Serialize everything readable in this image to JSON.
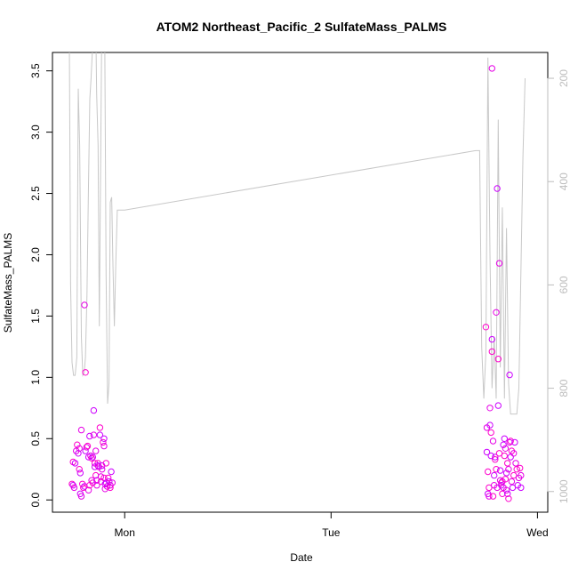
{
  "chart_data": {
    "type": "scatter",
    "title": "ATOM2 Northeast_Pacific_2 SulfateMass_PALMS",
    "xlabel": "Date",
    "ylabel": "SulfateMass_PALMS",
    "x_ticks": [
      "Mon",
      "Tue",
      "Wed"
    ],
    "ylim": [
      0,
      3.65
    ],
    "y_ticks": [
      "0.0",
      "0.5",
      "1.0",
      "1.5",
      "2.0",
      "2.5",
      "3.0",
      "3.5"
    ],
    "y2_ticks": [
      "200",
      "400",
      "600",
      "800",
      "1000"
    ],
    "colors": {
      "points": [
        "#ff00cc",
        "#cc00ff",
        "#e600e6"
      ],
      "pressure_line": "#c8c8c8",
      "right_axis": "#bdbdbd"
    },
    "series": [
      {
        "values_note": "x in days after Monday 00:00, y in SulfateMass_PALMS units",
        "points": [
          [
            -0.255,
            0.13
          ],
          [
            -0.25,
            0.12
          ],
          [
            -0.245,
            0.1
          ],
          [
            -0.25,
            0.31
          ],
          [
            -0.24,
            0.3
          ],
          [
            -0.235,
            0.4
          ],
          [
            -0.23,
            0.45
          ],
          [
            -0.225,
            0.38
          ],
          [
            -0.22,
            0.42
          ],
          [
            -0.22,
            0.25
          ],
          [
            -0.215,
            0.22
          ],
          [
            -0.21,
            0.57
          ],
          [
            -0.205,
            0.13
          ],
          [
            -0.215,
            0.05
          ],
          [
            -0.21,
            0.03
          ],
          [
            -0.2,
            0.1
          ],
          [
            -0.195,
            0.11
          ],
          [
            -0.195,
            1.59
          ],
          [
            -0.19,
            1.04
          ],
          [
            -0.19,
            0.4
          ],
          [
            -0.185,
            0.43
          ],
          [
            -0.18,
            0.44
          ],
          [
            -0.175,
            0.35
          ],
          [
            -0.175,
            0.08
          ],
          [
            -0.17,
            0.12
          ],
          [
            -0.17,
            0.52
          ],
          [
            -0.165,
            0.36
          ],
          [
            -0.16,
            0.34
          ],
          [
            -0.155,
            0.35
          ],
          [
            -0.16,
            0.16
          ],
          [
            -0.155,
            0.14
          ],
          [
            -0.15,
            0.73
          ],
          [
            -0.15,
            0.53
          ],
          [
            -0.145,
            0.3
          ],
          [
            -0.145,
            0.27
          ],
          [
            -0.14,
            0.4
          ],
          [
            -0.14,
            0.2
          ],
          [
            -0.135,
            0.16
          ],
          [
            -0.135,
            0.12
          ],
          [
            -0.13,
            0.3
          ],
          [
            -0.13,
            0.28
          ],
          [
            -0.125,
            0.27
          ],
          [
            -0.12,
            0.59
          ],
          [
            -0.12,
            0.53
          ],
          [
            -0.115,
            0.19
          ],
          [
            -0.115,
            0.15
          ],
          [
            -0.11,
            0.28
          ],
          [
            -0.11,
            0.25
          ],
          [
            -0.105,
            0.47
          ],
          [
            -0.1,
            0.5
          ],
          [
            -0.1,
            0.44
          ],
          [
            -0.1,
            0.18
          ],
          [
            -0.095,
            0.13
          ],
          [
            -0.095,
            0.09
          ],
          [
            -0.09,
            0.3
          ],
          [
            -0.09,
            0.14
          ],
          [
            -0.085,
            0.11
          ],
          [
            -0.08,
            0.18
          ],
          [
            -0.075,
            0.15
          ],
          [
            -0.07,
            0.12
          ],
          [
            -0.07,
            0.1
          ],
          [
            -0.065,
            0.23
          ],
          [
            -0.06,
            0.14
          ],
          [
            1.75,
            1.41
          ],
          [
            1.755,
            0.39
          ],
          [
            1.755,
            0.59
          ],
          [
            1.76,
            0.23
          ],
          [
            1.76,
            0.05
          ],
          [
            1.765,
            0.03
          ],
          [
            1.765,
            0.1
          ],
          [
            1.77,
            0.61
          ],
          [
            1.77,
            0.75
          ],
          [
            1.775,
            0.55
          ],
          [
            1.775,
            0.36
          ],
          [
            1.78,
            3.52
          ],
          [
            1.78,
            1.21
          ],
          [
            1.78,
            1.31
          ],
          [
            1.785,
            0.48
          ],
          [
            1.785,
            0.03
          ],
          [
            1.79,
            0.2
          ],
          [
            1.79,
            0.12
          ],
          [
            1.795,
            0.33
          ],
          [
            1.795,
            0.35
          ],
          [
            1.8,
            1.53
          ],
          [
            1.8,
            0.25
          ],
          [
            1.805,
            2.54
          ],
          [
            1.805,
            0.1
          ],
          [
            1.81,
            1.15
          ],
          [
            1.81,
            0.77
          ],
          [
            1.815,
            1.93
          ],
          [
            1.815,
            0.38
          ],
          [
            1.82,
            0.24
          ],
          [
            1.82,
            0.16
          ],
          [
            1.825,
            0.14
          ],
          [
            1.825,
            0.12
          ],
          [
            1.83,
            0.15
          ],
          [
            1.83,
            0.05
          ],
          [
            1.835,
            0.45
          ],
          [
            1.835,
            0.1
          ],
          [
            1.84,
            0.36
          ],
          [
            1.84,
            0.5
          ],
          [
            1.845,
            0.42
          ],
          [
            1.845,
            0.17
          ],
          [
            1.85,
            0.22
          ],
          [
            1.85,
            0.08
          ],
          [
            1.855,
            0.3
          ],
          [
            1.855,
            0.05
          ],
          [
            1.86,
            0.25
          ],
          [
            1.86,
            0.01
          ],
          [
            1.865,
            1.02
          ],
          [
            1.865,
            0.47
          ],
          [
            1.87,
            0.48
          ],
          [
            1.87,
            0.35
          ],
          [
            1.875,
            0.15
          ],
          [
            1.875,
            0.4
          ],
          [
            1.88,
            0.1
          ],
          [
            1.885,
            0.38
          ],
          [
            1.885,
            0.2
          ],
          [
            1.89,
            0.47
          ],
          [
            1.895,
            0.3
          ],
          [
            1.9,
            0.25
          ],
          [
            1.905,
            0.12
          ],
          [
            1.91,
            0.18
          ],
          [
            1.915,
            0.26
          ],
          [
            1.92,
            0.1
          ],
          [
            1.92,
            0.2
          ]
        ]
      },
      {
        "values_note": "gray pressure line on right axis (y2), x in days after Monday 00:00",
        "points": [
          [
            -0.27,
            0
          ],
          [
            -0.262,
            600
          ],
          [
            -0.255,
            750
          ],
          [
            -0.248,
            775
          ],
          [
            -0.24,
            775
          ],
          [
            -0.232,
            740
          ],
          [
            -0.225,
            220
          ],
          [
            -0.218,
            330
          ],
          [
            -0.21,
            700
          ],
          [
            -0.203,
            775
          ],
          [
            -0.196,
            770
          ],
          [
            -0.19,
            740
          ],
          [
            -0.183,
            620
          ],
          [
            -0.176,
            420
          ],
          [
            -0.169,
            240
          ],
          [
            -0.163,
            200
          ],
          [
            -0.157,
            150
          ],
          [
            -0.15,
            0
          ],
          [
            -0.143,
            0
          ],
          [
            -0.136,
            230
          ],
          [
            -0.129,
            330
          ],
          [
            -0.123,
            680
          ],
          [
            -0.116,
            340
          ],
          [
            -0.109,
            0
          ],
          [
            -0.102,
            0
          ],
          [
            -0.096,
            150
          ],
          [
            -0.09,
            580
          ],
          [
            -0.083,
            830
          ],
          [
            -0.076,
            790
          ],
          [
            -0.07,
            440
          ],
          [
            -0.063,
            430
          ],
          [
            -0.057,
            560
          ],
          [
            -0.05,
            680
          ],
          [
            -0.043,
            560
          ],
          [
            -0.036,
            455
          ],
          [
            0.0,
            455
          ],
          [
            1.7,
            340
          ],
          [
            1.72,
            340
          ],
          [
            1.73,
            720
          ],
          [
            1.74,
            820
          ],
          [
            1.75,
            730
          ],
          [
            1.76,
            160
          ],
          [
            1.77,
            540
          ],
          [
            1.78,
            800
          ],
          [
            1.79,
            700
          ],
          [
            1.8,
            820
          ],
          [
            1.81,
            280
          ],
          [
            1.82,
            760
          ],
          [
            1.83,
            450
          ],
          [
            1.84,
            820
          ],
          [
            1.85,
            490
          ],
          [
            1.86,
            790
          ],
          [
            1.87,
            850
          ],
          [
            1.88,
            850
          ],
          [
            1.9,
            850
          ],
          [
            1.91,
            800
          ],
          [
            1.93,
            350
          ],
          [
            1.94,
            200
          ]
        ]
      }
    ]
  }
}
